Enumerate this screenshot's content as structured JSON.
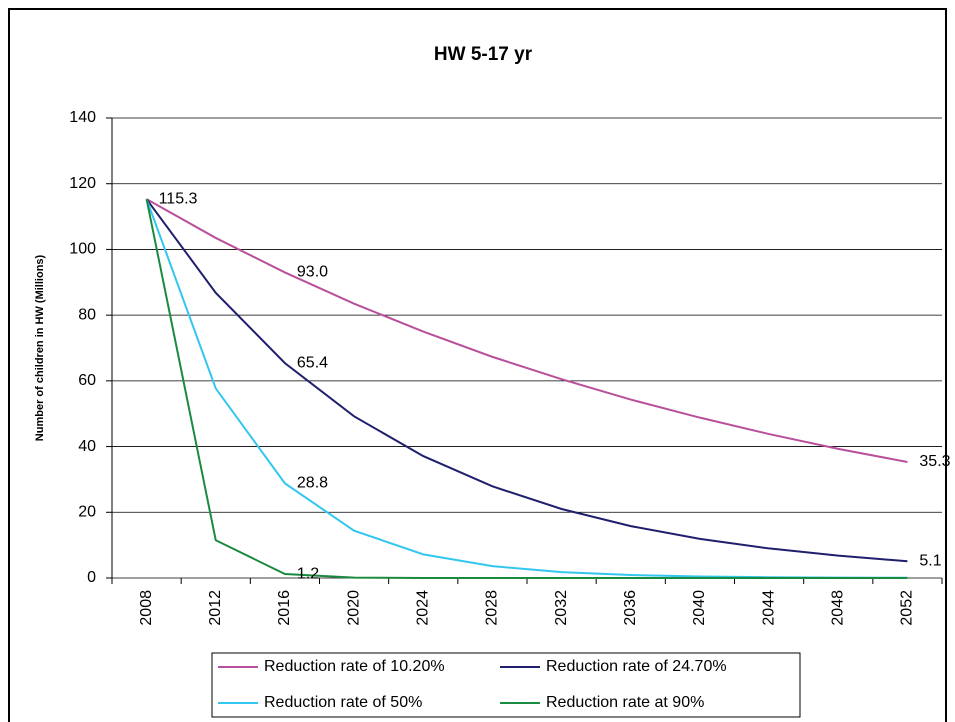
{
  "chart_data": {
    "type": "line",
    "title": "HW 5-17 yr",
    "y_label": "Number of children in HW (Millions)",
    "categories": [
      "2008",
      "2012",
      "2016",
      "2020",
      "2024",
      "2028",
      "2032",
      "2036",
      "2040",
      "2044",
      "2048",
      "2052"
    ],
    "series": [
      {
        "name": "Reduction rate of 10.20%",
        "color": "#b8509b",
        "values": [
          115.3,
          103.5,
          93.0,
          83.5,
          75.0,
          67.3,
          60.5,
          54.3,
          48.8,
          43.8,
          39.3,
          35.3
        ],
        "value_labels": [
          "115.3",
          null,
          "93.0",
          null,
          null,
          null,
          null,
          null,
          null,
          null,
          null,
          "35.3"
        ]
      },
      {
        "name": "Reduction rate of 24.70%",
        "color": "#1f1f6e",
        "values": [
          115.3,
          86.8,
          65.4,
          49.2,
          37.1,
          27.9,
          21.0,
          15.8,
          11.9,
          9.0,
          6.8,
          5.1
        ],
        "value_labels": [
          null,
          null,
          "65.4",
          null,
          null,
          null,
          null,
          null,
          null,
          null,
          null,
          "5.1"
        ]
      },
      {
        "name": "Reduction rate of 50%",
        "color": "#33c6ef",
        "values": [
          115.3,
          57.7,
          28.8,
          14.4,
          7.2,
          3.6,
          1.8,
          0.9,
          0.45,
          0.23,
          0.11,
          0.06
        ],
        "value_labels": [
          null,
          null,
          "28.8",
          null,
          null,
          null,
          null,
          null,
          null,
          null,
          null,
          null
        ]
      },
      {
        "name": "Reduction rate at 90%",
        "color": "#1a8a40",
        "values": [
          115.3,
          11.5,
          1.2,
          0.12,
          0.01,
          0,
          0,
          0,
          0,
          0,
          0,
          0
        ],
        "value_labels": [
          null,
          null,
          "1.2",
          null,
          null,
          null,
          null,
          null,
          null,
          null,
          null,
          null
        ]
      }
    ],
    "ylim": [
      0,
      140
    ],
    "yticks": [
      0,
      20,
      40,
      60,
      80,
      100,
      120,
      140
    ],
    "grid": true
  }
}
